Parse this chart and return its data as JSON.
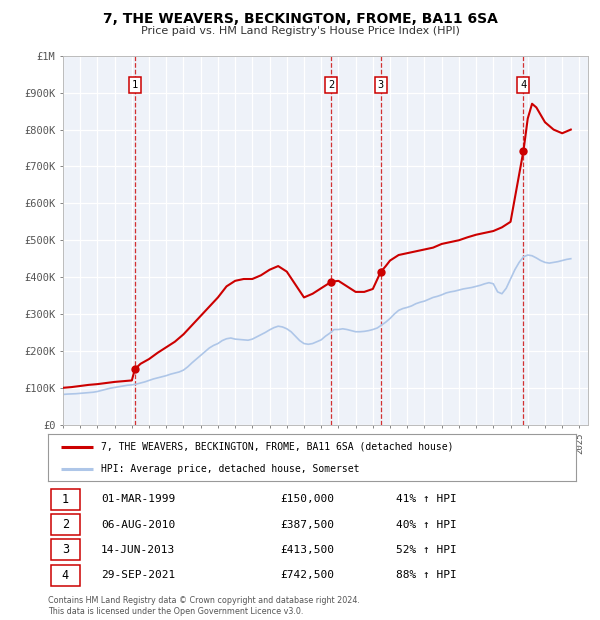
{
  "title": "7, THE WEAVERS, BECKINGTON, FROME, BA11 6SA",
  "subtitle": "Price paid vs. HM Land Registry's House Price Index (HPI)",
  "legend_line1": "7, THE WEAVERS, BECKINGTON, FROME, BA11 6SA (detached house)",
  "legend_line2": "HPI: Average price, detached house, Somerset",
  "footer": "Contains HM Land Registry data © Crown copyright and database right 2024.\nThis data is licensed under the Open Government Licence v3.0.",
  "sales": [
    {
      "num": 1,
      "date": "01-MAR-1999",
      "price": 150000,
      "pct": "41%",
      "x_year": 1999.17,
      "y_val": 150000
    },
    {
      "num": 2,
      "date": "06-AUG-2010",
      "price": 387500,
      "pct": "40%",
      "x_year": 2010.59,
      "y_val": 387500
    },
    {
      "num": 3,
      "date": "14-JUN-2013",
      "price": 413500,
      "pct": "52%",
      "x_year": 2013.45,
      "y_val": 413500
    },
    {
      "num": 4,
      "date": "29-SEP-2021",
      "price": 742500,
      "pct": "88%",
      "x_year": 2021.75,
      "y_val": 742500
    }
  ],
  "hpi_color": "#aec6e8",
  "price_color": "#cc0000",
  "marker_color": "#cc0000",
  "bg_color": "#eef2f9",
  "grid_color": "#ffffff",
  "ylim": [
    0,
    1000000
  ],
  "xlim_start": 1995.0,
  "xlim_end": 2025.5,
  "yticks": [
    0,
    100000,
    200000,
    300000,
    400000,
    500000,
    600000,
    700000,
    800000,
    900000,
    1000000
  ],
  "ytick_labels": [
    "£0",
    "£100K",
    "£200K",
    "£300K",
    "£400K",
    "£500K",
    "£600K",
    "£700K",
    "£800K",
    "£900K",
    "£1M"
  ],
  "hpi_data": {
    "years": [
      1995.0,
      1995.25,
      1995.5,
      1995.75,
      1996.0,
      1996.25,
      1996.5,
      1996.75,
      1997.0,
      1997.25,
      1997.5,
      1997.75,
      1998.0,
      1998.25,
      1998.5,
      1998.75,
      1999.0,
      1999.25,
      1999.5,
      1999.75,
      2000.0,
      2000.25,
      2000.5,
      2000.75,
      2001.0,
      2001.25,
      2001.5,
      2001.75,
      2002.0,
      2002.25,
      2002.5,
      2002.75,
      2003.0,
      2003.25,
      2003.5,
      2003.75,
      2004.0,
      2004.25,
      2004.5,
      2004.75,
      2005.0,
      2005.25,
      2005.5,
      2005.75,
      2006.0,
      2006.25,
      2006.5,
      2006.75,
      2007.0,
      2007.25,
      2007.5,
      2007.75,
      2008.0,
      2008.25,
      2008.5,
      2008.75,
      2009.0,
      2009.25,
      2009.5,
      2009.75,
      2010.0,
      2010.25,
      2010.5,
      2010.75,
      2011.0,
      2011.25,
      2011.5,
      2011.75,
      2012.0,
      2012.25,
      2012.5,
      2012.75,
      2013.0,
      2013.25,
      2013.5,
      2013.75,
      2014.0,
      2014.25,
      2014.5,
      2014.75,
      2015.0,
      2015.25,
      2015.5,
      2015.75,
      2016.0,
      2016.25,
      2016.5,
      2016.75,
      2017.0,
      2017.25,
      2017.5,
      2017.75,
      2018.0,
      2018.25,
      2018.5,
      2018.75,
      2019.0,
      2019.25,
      2019.5,
      2019.75,
      2020.0,
      2020.25,
      2020.5,
      2020.75,
      2021.0,
      2021.25,
      2021.5,
      2021.75,
      2022.0,
      2022.25,
      2022.5,
      2022.75,
      2023.0,
      2023.25,
      2023.5,
      2023.75,
      2024.0,
      2024.25,
      2024.5
    ],
    "values": [
      82000,
      83000,
      83500,
      84000,
      85000,
      86000,
      87000,
      88000,
      90000,
      93000,
      96000,
      99000,
      101000,
      103000,
      105000,
      107000,
      108000,
      110000,
      113000,
      116000,
      120000,
      124000,
      127000,
      130000,
      133000,
      137000,
      140000,
      143000,
      148000,
      157000,
      168000,
      178000,
      188000,
      198000,
      208000,
      215000,
      220000,
      228000,
      233000,
      235000,
      232000,
      231000,
      230000,
      229000,
      232000,
      238000,
      244000,
      250000,
      257000,
      263000,
      267000,
      265000,
      260000,
      252000,
      240000,
      228000,
      220000,
      218000,
      220000,
      225000,
      230000,
      240000,
      248000,
      258000,
      258000,
      260000,
      258000,
      255000,
      252000,
      252000,
      253000,
      255000,
      258000,
      262000,
      270000,
      278000,
      288000,
      300000,
      310000,
      315000,
      318000,
      322000,
      328000,
      332000,
      335000,
      340000,
      345000,
      348000,
      352000,
      357000,
      360000,
      362000,
      365000,
      368000,
      370000,
      372000,
      375000,
      378000,
      382000,
      385000,
      382000,
      360000,
      355000,
      370000,
      395000,
      420000,
      440000,
      455000,
      460000,
      458000,
      452000,
      445000,
      440000,
      438000,
      440000,
      442000,
      445000,
      448000,
      450000
    ]
  },
  "price_data": {
    "years": [
      1995.0,
      1995.5,
      1996.0,
      1996.5,
      1997.0,
      1997.5,
      1998.0,
      1998.5,
      1999.0,
      1999.17,
      1999.5,
      2000.0,
      2000.5,
      2001.0,
      2001.5,
      2002.0,
      2002.5,
      2003.0,
      2003.5,
      2004.0,
      2004.5,
      2005.0,
      2005.5,
      2006.0,
      2006.5,
      2007.0,
      2007.5,
      2008.0,
      2008.5,
      2009.0,
      2009.5,
      2010.0,
      2010.59,
      2011.0,
      2011.5,
      2012.0,
      2012.5,
      2013.0,
      2013.45,
      2013.75,
      2014.0,
      2014.5,
      2015.0,
      2015.5,
      2016.0,
      2016.5,
      2017.0,
      2017.5,
      2018.0,
      2018.5,
      2019.0,
      2019.5,
      2020.0,
      2020.5,
      2021.0,
      2021.75,
      2022.0,
      2022.25,
      2022.5,
      2022.75,
      2023.0,
      2023.5,
      2024.0,
      2024.5
    ],
    "values": [
      100000,
      102000,
      105000,
      108000,
      110000,
      113000,
      116000,
      118000,
      120000,
      150000,
      165000,
      178000,
      195000,
      210000,
      225000,
      245000,
      270000,
      295000,
      320000,
      345000,
      375000,
      390000,
      395000,
      395000,
      405000,
      420000,
      430000,
      415000,
      380000,
      345000,
      355000,
      370000,
      387500,
      390000,
      375000,
      360000,
      360000,
      368000,
      413500,
      430000,
      445000,
      460000,
      465000,
      470000,
      475000,
      480000,
      490000,
      495000,
      500000,
      508000,
      515000,
      520000,
      525000,
      535000,
      550000,
      742500,
      830000,
      870000,
      860000,
      840000,
      820000,
      800000,
      790000,
      800000
    ]
  }
}
